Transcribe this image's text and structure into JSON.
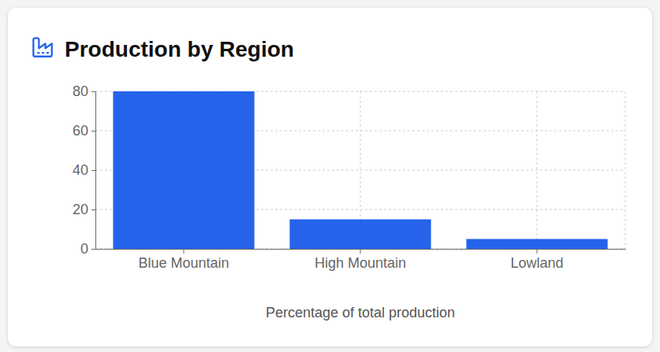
{
  "chart_data": {
    "type": "bar",
    "title": "Production by Region",
    "categories": [
      "Blue Mountain",
      "High Mountain",
      "Lowland"
    ],
    "values": [
      80,
      15,
      5
    ],
    "color": "#2563eb",
    "xlabel": "Percentage of total production",
    "ylim": [
      0,
      80
    ],
    "yticks": [
      0,
      20,
      40,
      60,
      80
    ],
    "grid": true
  }
}
